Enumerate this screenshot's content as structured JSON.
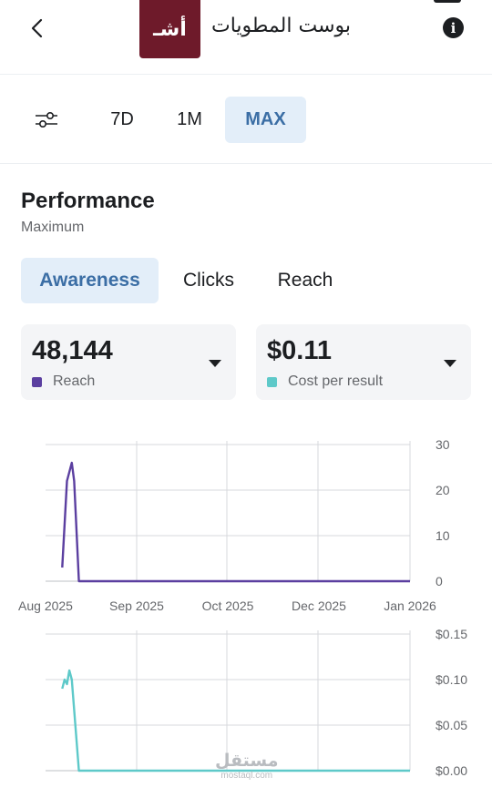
{
  "header": {
    "page_name": "بوست المطويات",
    "logo_text": "أشـ",
    "back_icon": "chevron-left-icon",
    "info_icon": "info-icon",
    "info_glyph": "i"
  },
  "range": {
    "filter_icon": "sliders-icon",
    "options": [
      "7D",
      "1M",
      "MAX"
    ],
    "selected": "MAX"
  },
  "performance": {
    "title": "Performance",
    "subtitle": "Maximum"
  },
  "tabs": {
    "items": [
      "Awareness",
      "Clicks",
      "Reach"
    ],
    "selected": "Awareness"
  },
  "metrics": [
    {
      "value": "48,144",
      "label": "Reach",
      "color": "#5b3fa0"
    },
    {
      "value": "$0.11",
      "label": "Cost per result",
      "color": "#5ec9c9"
    }
  ],
  "chart_data": [
    {
      "type": "line",
      "series": [
        {
          "name": "Reach",
          "color": "#5b3fa0",
          "x": [
            "2025-08-08",
            "2025-08-10",
            "2025-08-12",
            "2025-08-13",
            "2025-08-15",
            "2025-09-01",
            "2025-10-01",
            "2025-11-01",
            "2025-12-01",
            "2026-01-01",
            "2026-01-01"
          ],
          "y": [
            3,
            22,
            26,
            22,
            0,
            0,
            0,
            0,
            0,
            0,
            0
          ]
        }
      ],
      "x_ticks": [
        "Aug 2025",
        "Sep 2025",
        "Oct 2025",
        "Dec 2025",
        "Jan 2026"
      ],
      "y_ticks": [
        "0",
        "10",
        "20",
        "30"
      ],
      "ylim": [
        0,
        30
      ],
      "grid": true,
      "y_axis_position": "right"
    },
    {
      "type": "line",
      "series": [
        {
          "name": "Cost per result",
          "color": "#5ec9c9",
          "x": [
            "2025-08-08",
            "2025-08-09",
            "2025-08-10",
            "2025-08-11",
            "2025-08-12",
            "2025-08-15",
            "2025-09-01",
            "2025-10-01",
            "2025-11-01",
            "2025-12-01",
            "2026-01-01"
          ],
          "y": [
            0.09,
            0.1,
            0.095,
            0.11,
            0.1,
            0,
            0,
            0,
            0,
            0,
            0
          ]
        }
      ],
      "y_ticks": [
        "$0.00",
        "$0.05",
        "$0.10",
        "$0.15"
      ],
      "ylim": [
        0,
        0.15
      ],
      "grid": true,
      "y_axis_position": "right"
    }
  ],
  "watermark": {
    "arabic": "مستقل",
    "latin": "mostaql.com"
  }
}
